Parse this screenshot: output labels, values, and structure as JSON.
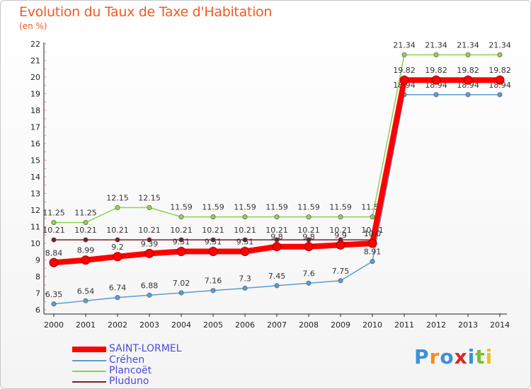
{
  "header": {
    "title": "Evolution du Taux de Taxe d'Habitation",
    "unit": "(en %)"
  },
  "logo": {
    "letters": [
      "P",
      "r",
      "o",
      "x",
      "i",
      "t",
      "i"
    ],
    "colors": [
      "#3b8fd9",
      "#f28c1e",
      "#3b8fd9",
      "#e02424",
      "#3b8fd9",
      "#7bbd2e",
      "#f2c01e"
    ]
  },
  "chart_data": {
    "type": "line",
    "x": [
      "2000",
      "2001",
      "2002",
      "2003",
      "2004",
      "2005",
      "2006",
      "2007",
      "2008",
      "2009",
      "2010",
      "2011",
      "2012",
      "2013",
      "2014"
    ],
    "ylim": [
      6,
      22
    ],
    "yticks": [
      "6",
      "7",
      "8",
      "9",
      "10",
      "11",
      "12",
      "13",
      "14",
      "15",
      "16",
      "17",
      "18",
      "19",
      "20",
      "21",
      "22"
    ],
    "grid": false,
    "legend_position": "bottom-left",
    "series": [
      {
        "name": "Pluduno",
        "color": "#7a1f2b",
        "values": [
          10.21,
          10.21,
          10.21,
          10.21,
          10.21,
          10.21,
          10.21,
          10.21,
          10.21,
          10.21,
          10.21,
          null,
          null,
          null,
          null
        ],
        "labels": [
          "10.21",
          "10.21",
          "10.21",
          "10.21",
          "10.21",
          "10.21",
          "10.21",
          "10.21",
          "10.21",
          "10.21",
          "10.21",
          "",
          "",
          "",
          ""
        ]
      },
      {
        "name": "Plancoët",
        "color": "#8fd14f",
        "values": [
          11.25,
          11.25,
          12.15,
          12.15,
          11.59,
          11.59,
          11.59,
          11.59,
          11.59,
          11.59,
          11.59,
          21.34,
          21.34,
          21.34,
          21.34
        ],
        "labels": [
          "11.25",
          "11.25",
          "12.15",
          "12.15",
          "11.59",
          "11.59",
          "11.59",
          "11.59",
          "11.59",
          "11.59",
          "11.59",
          "21.34",
          "21.34",
          "21.34",
          "21.34"
        ]
      },
      {
        "name": "Créhen",
        "color": "#5a9bd4",
        "values": [
          6.35,
          6.54,
          6.74,
          6.88,
          7.02,
          7.16,
          7.3,
          7.45,
          7.6,
          7.75,
          8.91,
          18.94,
          18.94,
          18.94,
          18.94
        ],
        "labels": [
          "6.35",
          "6.54",
          "6.74",
          "6.88",
          "7.02",
          "7.16",
          "7.3",
          "7.45",
          "7.6",
          "7.75",
          "8.91",
          "18.94",
          "18.94",
          "18.94",
          "18.94"
        ]
      },
      {
        "name": "SAINT-LORMEL",
        "color": "#ff0000",
        "values": [
          8.84,
          8.99,
          9.2,
          9.39,
          9.51,
          9.51,
          9.51,
          9.8,
          9.8,
          9.9,
          10.0,
          19.82,
          19.82,
          19.82,
          19.82
        ],
        "labels": [
          "8.84",
          "8.99",
          "9.2",
          "9.39",
          "9.51",
          "9.51",
          "9.51",
          "9.8",
          "9.8",
          "9.9",
          "10.0",
          "19.82",
          "19.82",
          "19.82",
          "19.82"
        ]
      }
    ],
    "legend": [
      {
        "name": "SAINT-LORMEL",
        "color": "#ff0000",
        "text_color": "#4b4bd8"
      },
      {
        "name": "Créhen",
        "color": "#5a9bd4",
        "text_color": "#4b4bd8"
      },
      {
        "name": "Plancoët",
        "color": "#8fd14f",
        "text_color": "#4b4bd8"
      },
      {
        "name": "Pluduno",
        "color": "#7a1f2b",
        "text_color": "#4b4bd8"
      }
    ]
  }
}
